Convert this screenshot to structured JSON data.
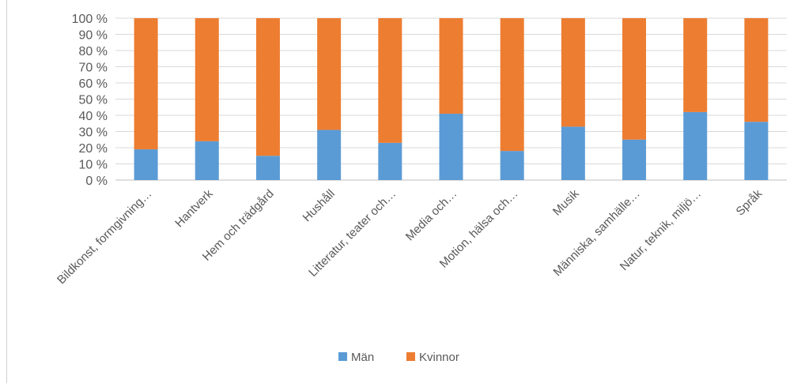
{
  "chart_data": {
    "type": "bar",
    "stacked": true,
    "percent_stacked": true,
    "categories": [
      "Bildkonst, formgivning…",
      "Hantverk",
      "Hem och trädgård",
      "Hushåll",
      "Litteratur, teater och…",
      "Media och…",
      "Motion, hälsa och…",
      "Musik",
      "Människa, samhälle…",
      "Natur, teknik, miljö…",
      "Språk"
    ],
    "series": [
      {
        "name": "Män",
        "color": "#5b9bd5",
        "values": [
          19,
          24,
          15,
          31,
          23,
          41,
          18,
          33,
          25,
          42,
          36
        ]
      },
      {
        "name": "Kvinnor",
        "color": "#ed7d31",
        "values": [
          81,
          76,
          85,
          69,
          77,
          59,
          82,
          67,
          75,
          58,
          64
        ]
      }
    ],
    "ylim": [
      0,
      100
    ],
    "yticks": [
      "0 %",
      "10 %",
      "20 %",
      "30 %",
      "40 %",
      "50 %",
      "60 %",
      "70 %",
      "80 %",
      "90 %",
      "100 %"
    ],
    "grid": true,
    "legend_position": "bottom",
    "title": "",
    "xlabel": "",
    "ylabel": ""
  }
}
